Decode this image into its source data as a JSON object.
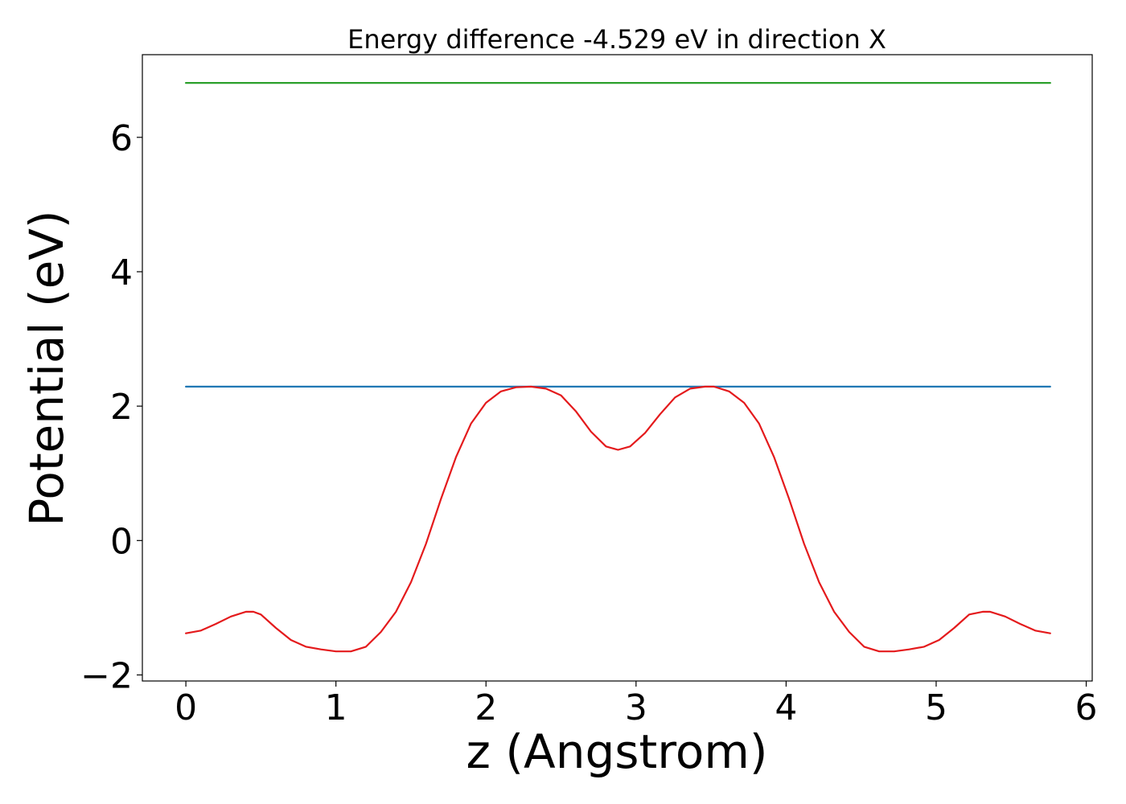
{
  "chart_data": {
    "type": "line",
    "title": "Energy difference -4.529 eV in direction X",
    "xlabel": "z (Angstrom)",
    "ylabel": "Potential (eV)",
    "xlim": [
      -0.29,
      6.04
    ],
    "ylim": [
      -2.09,
      7.23
    ],
    "xticks": [
      0,
      1,
      2,
      3,
      4,
      5,
      6
    ],
    "xtick_labels": [
      "0",
      "1",
      "2",
      "3",
      "4",
      "5",
      "6"
    ],
    "yticks": [
      -2,
      0,
      2,
      4,
      6
    ],
    "ytick_labels": [
      "−2",
      "0",
      "2",
      "4",
      "6"
    ],
    "grid": false,
    "legend": "none",
    "series": [
      {
        "color": "#2ca02c",
        "x": [
          0,
          5.76
        ],
        "y": [
          6.81,
          6.81
        ]
      },
      {
        "color": "#1f77b4",
        "x": [
          0,
          5.76
        ],
        "y": [
          2.29,
          2.29
        ]
      },
      {
        "color": "#e41a1c",
        "x": [
          0,
          0.1,
          0.2,
          0.3,
          0.4,
          0.45,
          0.5,
          0.6,
          0.7,
          0.8,
          0.9,
          1.0,
          1.1,
          1.2,
          1.3,
          1.4,
          1.5,
          1.6,
          1.7,
          1.8,
          1.9,
          2.0,
          2.1,
          2.2,
          2.3,
          2.4,
          2.5,
          2.6,
          2.7,
          2.8,
          2.88,
          2.96,
          3.06,
          3.16,
          3.26,
          3.36,
          3.46,
          3.52,
          3.62,
          3.72,
          3.82,
          3.92,
          4.02,
          4.12,
          4.22,
          4.32,
          4.42,
          4.52,
          4.62,
          4.72,
          4.82,
          4.92,
          5.02,
          5.12,
          5.22,
          5.31,
          5.36,
          5.46,
          5.56,
          5.66,
          5.76
        ],
        "y": [
          -1.38,
          -1.34,
          -1.24,
          -1.13,
          -1.06,
          -1.06,
          -1.1,
          -1.3,
          -1.48,
          -1.58,
          -1.62,
          -1.65,
          -1.65,
          -1.58,
          -1.36,
          -1.06,
          -0.62,
          -0.05,
          0.62,
          1.24,
          1.74,
          2.05,
          2.22,
          2.28,
          2.29,
          2.26,
          2.16,
          1.92,
          1.62,
          1.4,
          1.35,
          1.4,
          1.6,
          1.88,
          2.13,
          2.26,
          2.29,
          2.29,
          2.22,
          2.05,
          1.74,
          1.24,
          0.62,
          -0.05,
          -0.62,
          -1.06,
          -1.36,
          -1.58,
          -1.65,
          -1.65,
          -1.62,
          -1.58,
          -1.48,
          -1.3,
          -1.1,
          -1.06,
          -1.06,
          -1.13,
          -1.24,
          -1.34,
          -1.38
        ]
      }
    ]
  }
}
